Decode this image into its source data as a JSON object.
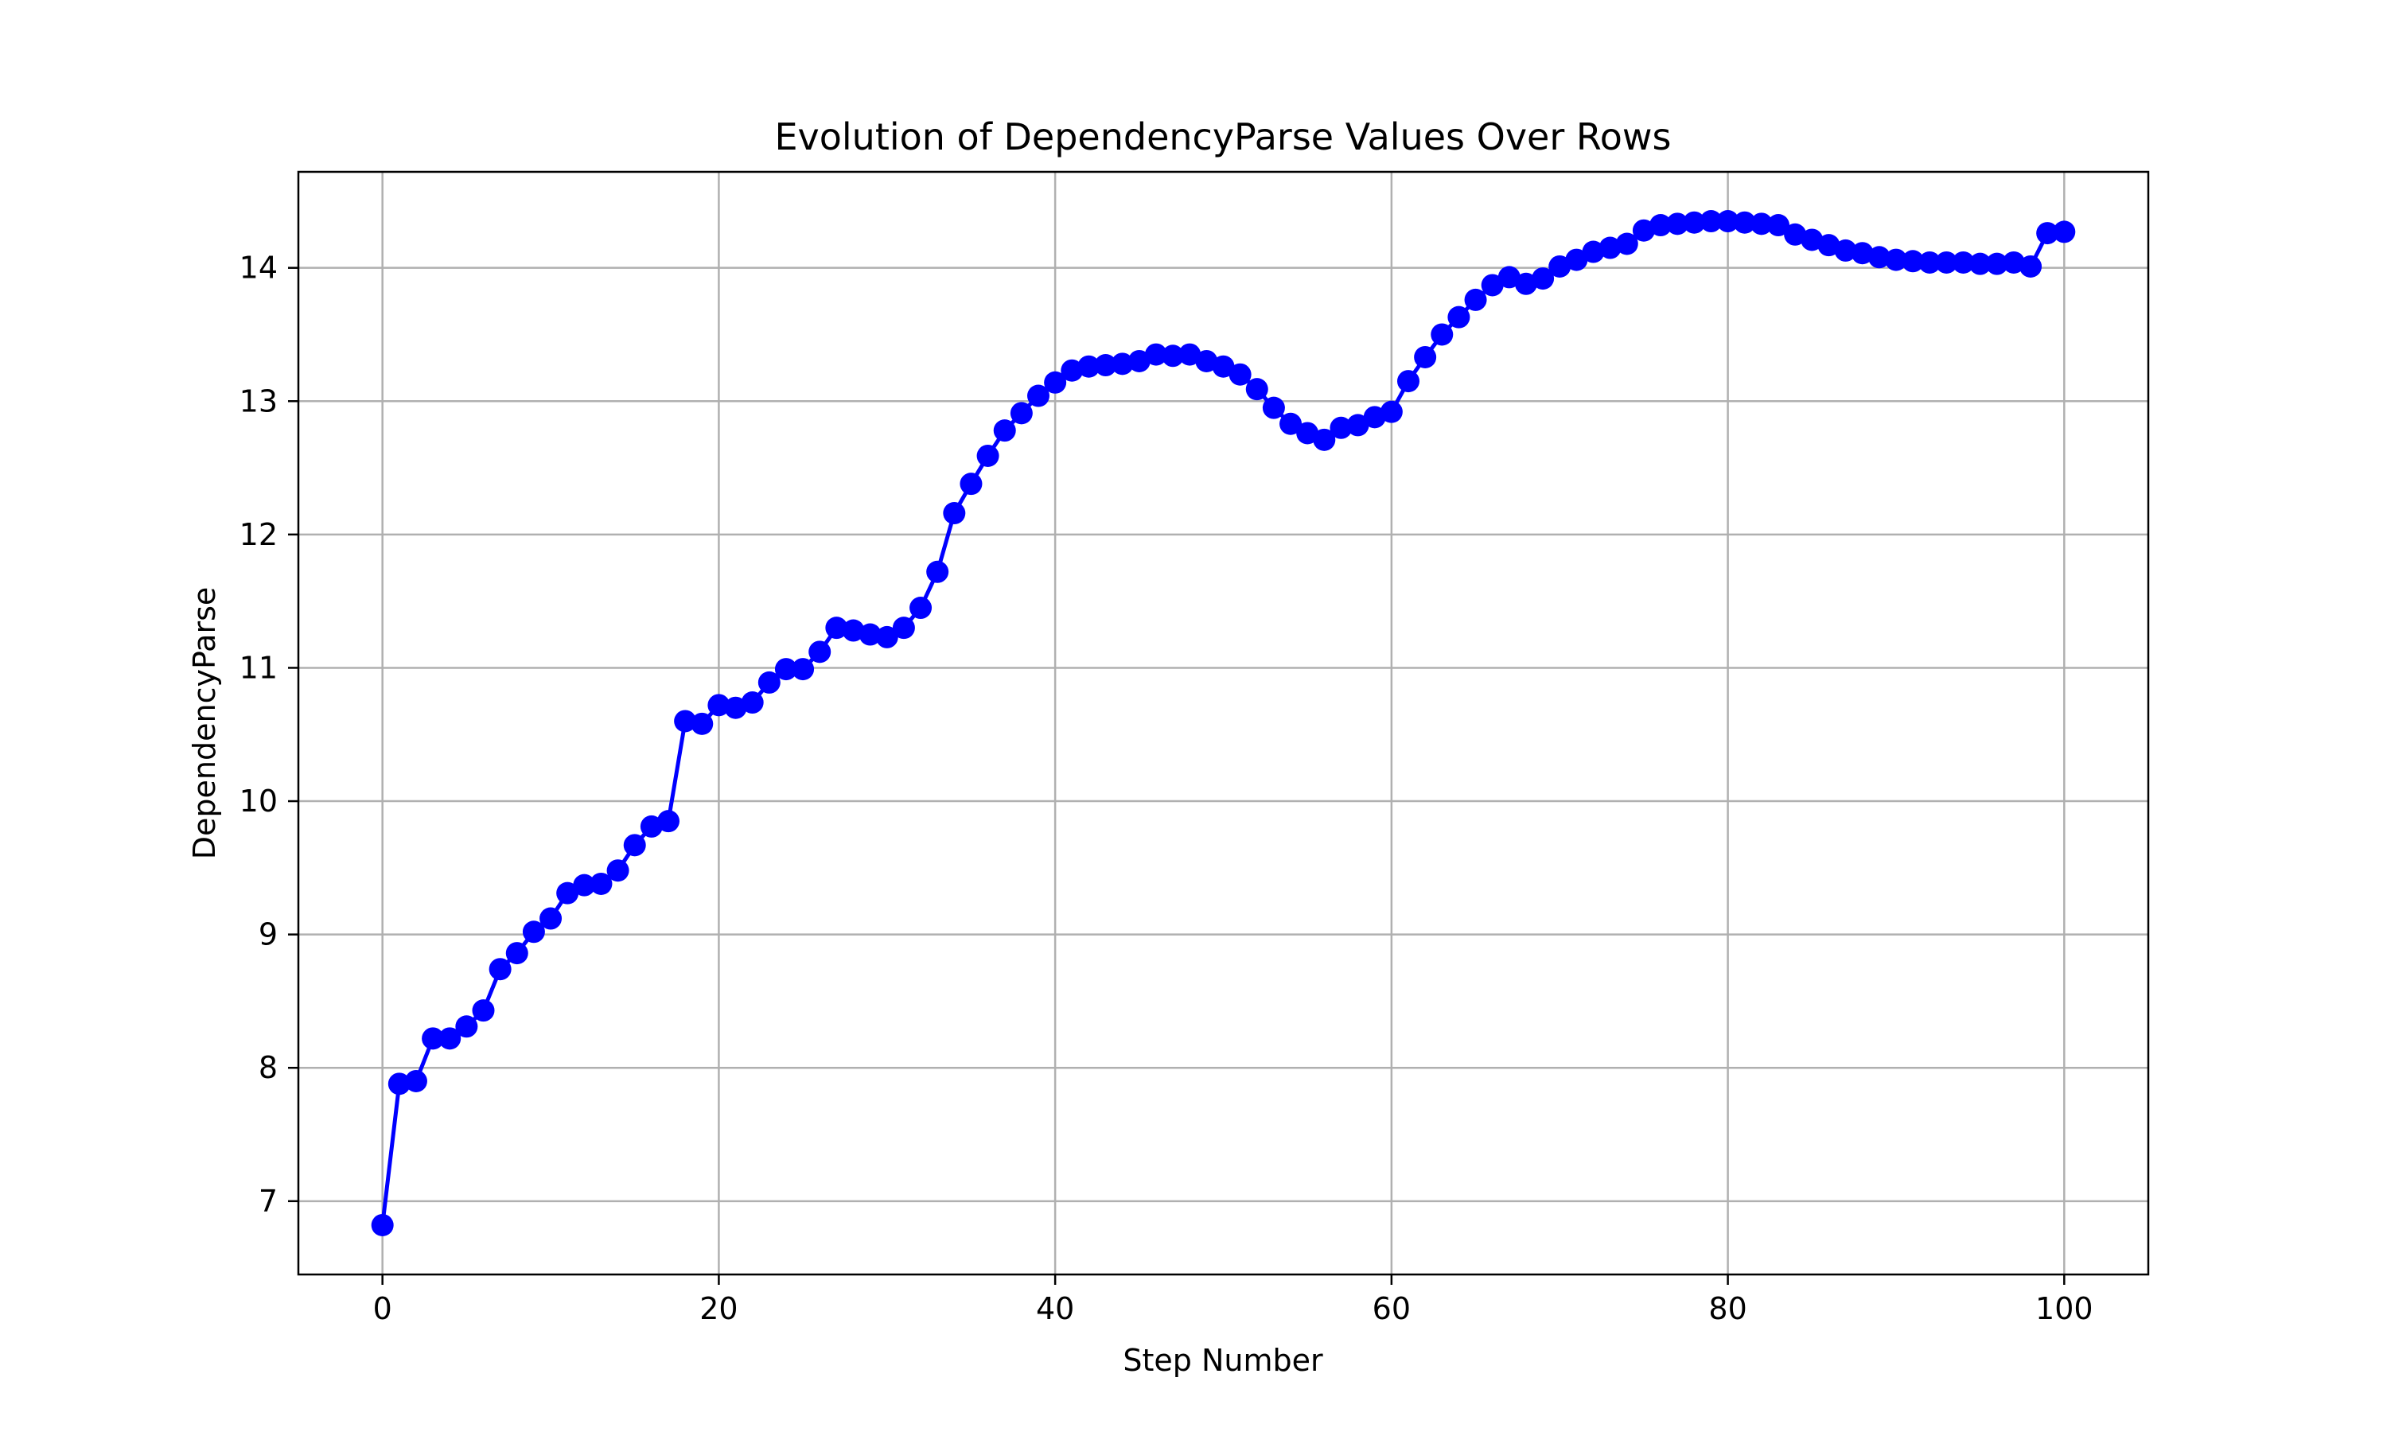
{
  "chart_data": {
    "type": "line",
    "title": "Evolution of DependencyParse Values Over Rows",
    "xlabel": "Step Number",
    "ylabel": "DependencyParse",
    "xlim": [
      -5,
      105
    ],
    "ylim": [
      6.45,
      14.72
    ],
    "x_ticks": [
      0,
      20,
      40,
      60,
      80,
      100
    ],
    "y_ticks": [
      7,
      8,
      9,
      10,
      11,
      12,
      13,
      14
    ],
    "grid": true,
    "marker": "circle",
    "color": "#0000ff",
    "series": [
      {
        "x": [
          0,
          1,
          2,
          3,
          4,
          5,
          6,
          7,
          8,
          9,
          10,
          11,
          12,
          13,
          14,
          15,
          16,
          17,
          18,
          19,
          20,
          21,
          22,
          23,
          24,
          25,
          26,
          27,
          28,
          29,
          30,
          31,
          32,
          33,
          34,
          35,
          36,
          37,
          38,
          39,
          40,
          41,
          42,
          43,
          44,
          45,
          46,
          47,
          48,
          49,
          50,
          51,
          52,
          53,
          54,
          55,
          56,
          57,
          58,
          59,
          60,
          61,
          62,
          63,
          64,
          65,
          66,
          67,
          68,
          69,
          70,
          71,
          72,
          73,
          74,
          75,
          76,
          77,
          78,
          79,
          80,
          81,
          82,
          83,
          84,
          85,
          86,
          87,
          88,
          89,
          90,
          91,
          92,
          93,
          94,
          95,
          96,
          97,
          98,
          99,
          100
        ],
        "values": [
          6.82,
          7.88,
          7.9,
          8.22,
          8.22,
          8.31,
          8.43,
          8.74,
          8.86,
          9.02,
          9.12,
          9.31,
          9.37,
          9.38,
          9.48,
          9.67,
          9.81,
          9.85,
          10.6,
          10.58,
          10.72,
          10.7,
          10.74,
          10.89,
          10.99,
          10.99,
          11.12,
          11.3,
          11.28,
          11.25,
          11.23,
          11.3,
          11.45,
          11.72,
          12.16,
          12.38,
          12.59,
          12.78,
          12.91,
          13.04,
          13.14,
          13.23,
          13.26,
          13.27,
          13.28,
          13.3,
          13.35,
          13.34,
          13.35,
          13.3,
          13.26,
          13.2,
          13.09,
          12.95,
          12.83,
          12.76,
          12.71,
          12.8,
          12.82,
          12.88,
          12.92,
          13.15,
          13.33,
          13.5,
          13.63,
          13.76,
          13.87,
          13.93,
          13.88,
          13.92,
          14.01,
          14.06,
          14.12,
          14.15,
          14.18,
          14.28,
          14.32,
          14.33,
          14.34,
          14.35,
          14.35,
          14.34,
          14.33,
          14.32,
          14.25,
          14.21,
          14.17,
          14.13,
          14.11,
          14.08,
          14.06,
          14.05,
          14.04,
          14.04,
          14.04,
          14.03,
          14.03,
          14.04,
          14.01,
          14.26,
          14.27
        ]
      }
    ]
  }
}
